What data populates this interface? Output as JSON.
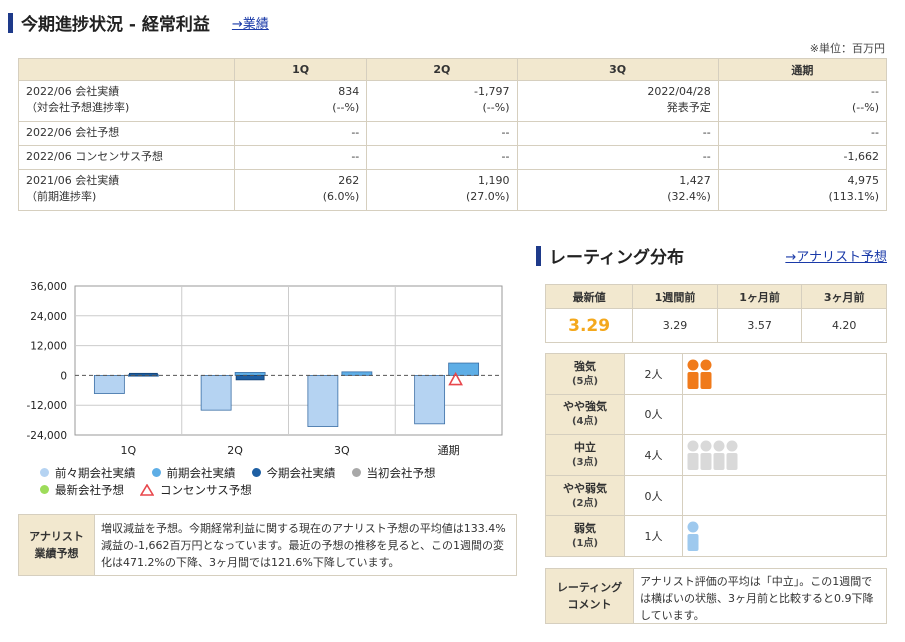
{
  "progress": {
    "title": "今期進捗状況 - 経常利益",
    "link": "→業績",
    "unit": "※単位：百万円",
    "columns": [
      "",
      "1Q",
      "2Q",
      "3Q",
      "通期"
    ],
    "rows": [
      {
        "label": "2022/06 会社実績",
        "sublabel": "（対会社予想進捗率)",
        "cells": [
          [
            "834",
            "(--%)"
          ],
          [
            "-1,797",
            "(--%)"
          ],
          [
            "2022/04/28",
            "発表予定"
          ],
          [
            "--",
            "(--%)"
          ]
        ]
      },
      {
        "label": "2022/06 会社予想",
        "sublabel": "",
        "cells": [
          [
            "--",
            ""
          ],
          [
            "--",
            ""
          ],
          [
            "--",
            ""
          ],
          [
            "--",
            ""
          ]
        ]
      },
      {
        "label": "2022/06 コンセンサス予想",
        "sublabel": "",
        "cells": [
          [
            "--",
            ""
          ],
          [
            "--",
            ""
          ],
          [
            "--",
            ""
          ],
          [
            "-1,662",
            ""
          ]
        ]
      },
      {
        "label": "2021/06 会社実績",
        "sublabel": "（前期進捗率)",
        "cells": [
          [
            "262",
            "(6.0%)"
          ],
          [
            "1,190",
            "(27.0%)"
          ],
          [
            "1,427",
            "(32.4%)"
          ],
          [
            "4,975",
            "(113.1%)"
          ]
        ]
      }
    ]
  },
  "chart_data": {
    "type": "bar",
    "categories": [
      "1Q",
      "2Q",
      "3Q",
      "通期"
    ],
    "yticks": [
      "36,000",
      "24,000",
      "12,000",
      "0",
      "-12,000",
      "-24,000"
    ],
    "ylim": [
      -24000,
      36000
    ],
    "series": [
      {
        "name": "前々期会社実績",
        "color": "#b5d3f2",
        "values": [
          -7300,
          -14000,
          -20600,
          -19500
        ]
      },
      {
        "name": "前期会社実績",
        "color": "#5eaee6",
        "values": [
          262,
          1190,
          1427,
          4975
        ]
      },
      {
        "name": "今期会社実績",
        "color": "#1e5fa3",
        "values": [
          834,
          -1797,
          null,
          null
        ]
      }
    ],
    "consensus": {
      "name": "コンセンサス予想",
      "color": "#e8474c",
      "values": [
        null,
        null,
        null,
        -1662
      ]
    },
    "legend": [
      {
        "name": "前々期会社実績",
        "color": "#b5d3f2"
      },
      {
        "name": "前期会社実績",
        "color": "#5eaee6"
      },
      {
        "name": "今期会社実績",
        "color": "#1e5fa3"
      },
      {
        "name": "当初会社予想",
        "color": "#a8a8a8"
      },
      {
        "name": "最新会社予想",
        "color": "#9ddc5a"
      },
      {
        "name": "コンセンサス予想",
        "color": "#e8474c"
      }
    ]
  },
  "analyst": {
    "label1": "アナリスト",
    "label2": "業績予想",
    "text": "増収減益を予想。今期経常利益に関する現在のアナリスト予想の平均値は133.4%減益の-1,662百万円となっています。最近の予想の推移を見ると、この1週間の変化は471.2%の下降、3ヶ月間では121.6%下降しています。"
  },
  "rating": {
    "title": "レーティング分布",
    "link": "→アナリスト予想",
    "headers": [
      "最新値",
      "1週間前",
      "1ヶ月前",
      "3ヶ月前"
    ],
    "values": [
      "3.29",
      "3.29",
      "3.57",
      "4.20"
    ]
  },
  "distribution": [
    {
      "level": "強気",
      "points": "(5点)",
      "count": "2人",
      "people": 2,
      "color": "#f07a1a"
    },
    {
      "level": "やや強気",
      "points": "(4点)",
      "count": "0人",
      "people": 0,
      "color": "#f07a1a"
    },
    {
      "level": "中立",
      "points": "(3点)",
      "count": "4人",
      "people": 4,
      "color": "#d9d9d9"
    },
    {
      "level": "やや弱気",
      "points": "(2点)",
      "count": "0人",
      "people": 0,
      "color": "#9ec9ee"
    },
    {
      "level": "弱気",
      "points": "(1点)",
      "count": "1人",
      "people": 1,
      "color": "#9ec9ee"
    }
  ],
  "comment": {
    "label1": "レーティング",
    "label2": "コメント",
    "text": "アナリスト評価の平均は「中立」。この1週間では横ばいの状態、3ヶ月前と比較すると0.9下降しています。"
  }
}
